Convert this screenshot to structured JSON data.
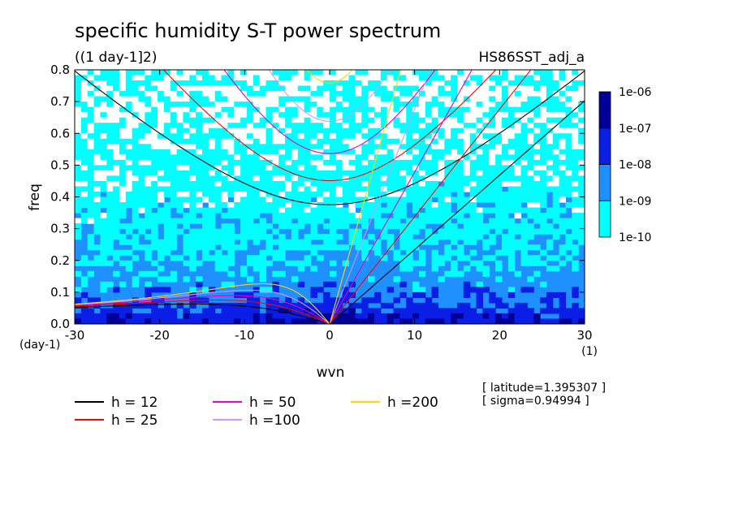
{
  "figure": {
    "title": "specific humidity S-T power spectrum",
    "units": "((1 day-1]2)",
    "run_label": "HS86SST_adj_a",
    "info": [
      "[ latitude=1.395307 ]",
      "[ sigma=0.94994 ]"
    ]
  },
  "chart_data": {
    "type": "heatmap",
    "xlabel": "wvn",
    "ylabel": "freq",
    "x_unit": "(1)",
    "y_unit": "(day-1)",
    "xlim": [
      -30,
      30
    ],
    "ylim": [
      0,
      0.8
    ],
    "x_ticks": [
      -30,
      -20,
      -10,
      0,
      10,
      20,
      30
    ],
    "x_tick_labels": [
      "-30",
      "-20",
      "-10",
      "0",
      "10",
      "20",
      "30"
    ],
    "y_ticks": [
      0.0,
      0.1,
      0.2,
      0.3,
      0.4,
      0.5,
      0.6,
      0.7,
      0.8
    ],
    "y_tick_labels": [
      "0.0",
      "0.1",
      "0.2",
      "0.3",
      "0.4",
      "0.5",
      "0.6",
      "0.7",
      "0.8"
    ],
    "colorbar": {
      "levels": [
        "1e-10",
        "1e-09",
        "1e-08",
        "1e-07",
        "1e-06"
      ],
      "colors": [
        "#00ffff",
        "#1e90ff",
        "#0a1ee6",
        "#000099",
        "#4b0fa8"
      ]
    },
    "background_color": "#ffffff",
    "series": [
      {
        "name": "h = 12",
        "value": 12,
        "color": "#000000"
      },
      {
        "name": "h = 25",
        "value": 25,
        "color": "#ff0000"
      },
      {
        "name": "h = 50",
        "value": 50,
        "color": "#e600c8"
      },
      {
        "name": "h =100",
        "value": 100,
        "color": "#d296ff"
      },
      {
        "name": "h =200",
        "value": 200,
        "color": "#ffd700"
      }
    ]
  }
}
